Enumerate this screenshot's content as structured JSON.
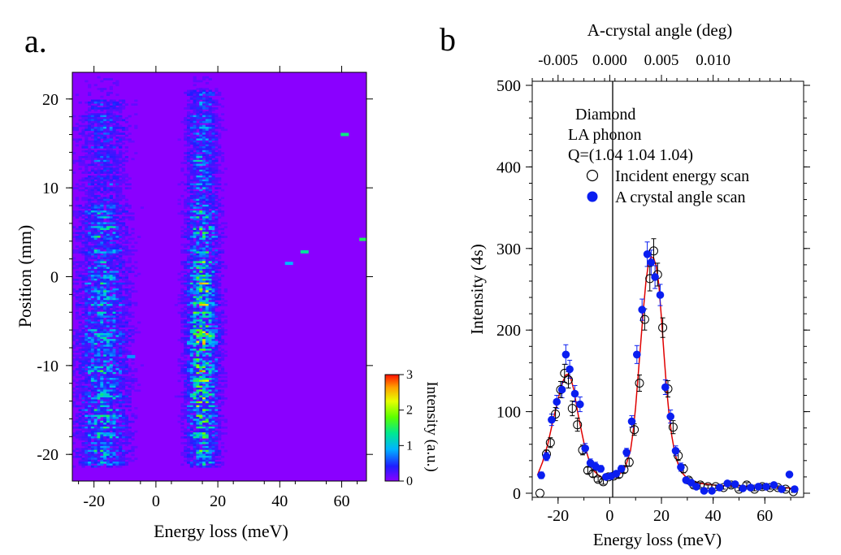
{
  "panel_a": {
    "label": "a.",
    "chart_data": {
      "type": "heatmap",
      "xlabel": "Energy loss (meV)",
      "ylabel": "Position (mm)",
      "xlim": [
        -27,
        68
      ],
      "ylim": [
        -23,
        23
      ],
      "x_ticks": [
        "-20",
        "0",
        "20",
        "40",
        "60"
      ],
      "x_tick_values": [
        -20,
        0,
        20,
        40,
        60
      ],
      "y_ticks": [
        "20",
        "10",
        "0",
        "-10",
        "-20"
      ],
      "y_tick_values": [
        20,
        10,
        0,
        -10,
        -20
      ],
      "band_centers_meV": [
        -17,
        15
      ],
      "band_peak_intensity": [
        1.0,
        2.2
      ],
      "hot_spots": [
        {
          "x": 61,
          "y": 16,
          "intensity": 1.4
        },
        {
          "x": 67,
          "y": 4.2,
          "intensity": 1.5
        },
        {
          "x": 48,
          "y": 2.8,
          "intensity": 1.3
        },
        {
          "x": 43,
          "y": 1.5,
          "intensity": 0.9
        },
        {
          "x": -8,
          "y": -9,
          "intensity": 0.8
        }
      ],
      "colorbar": {
        "label": "Intensity (a.u.)",
        "range": [
          0,
          3
        ],
        "ticks": [
          "0",
          "1",
          "2",
          "3"
        ],
        "tick_values": [
          0,
          1,
          2,
          3
        ],
        "colormap": [
          "#8a00ff",
          "#1e1eff",
          "#00b4ff",
          "#00e890",
          "#5bff00",
          "#e6ff00",
          "#ffa000",
          "#ff1000"
        ]
      }
    }
  },
  "panel_b": {
    "label": "b",
    "chart_data": {
      "type": "scatter",
      "xlabel": "Energy loss (meV)",
      "ylabel": "Intensity (4s)",
      "top_xlabel": "A-crystal angle (deg)",
      "xlim": [
        -30,
        75
      ],
      "ylim": [
        -5,
        505
      ],
      "x_ticks": [
        "-20",
        "0",
        "20",
        "40",
        "60"
      ],
      "x_tick_values": [
        -20,
        0,
        20,
        40,
        60
      ],
      "y_ticks": [
        "0",
        "100",
        "200",
        "300",
        "400",
        "500"
      ],
      "y_tick_values": [
        0,
        100,
        200,
        300,
        400,
        500
      ],
      "top_x_ticks": [
        "-0.005",
        "0.000",
        "0.005",
        "0.010"
      ],
      "top_x_tick_positions_meV": [
        -20,
        0,
        20,
        40
      ],
      "annotation": [
        "Diamond",
        "LA phonon",
        "Q=(1.04 1.04 1.04)"
      ],
      "legend": [
        {
          "name": "Incident energy scan",
          "marker": "open-circle"
        },
        {
          "name": "A crystal angle scan",
          "marker": "filled-circle",
          "color": "#0a1ef0"
        }
      ],
      "fit_color": "#e00000",
      "fit_x": [
        -28,
        -26,
        -24,
        -22,
        -20,
        -19,
        -18,
        -17,
        -16,
        -15,
        -14,
        -13,
        -12,
        -10,
        -8,
        -6,
        -4,
        -2,
        0,
        2,
        4,
        6,
        8,
        9,
        10,
        11,
        12,
        13,
        14,
        15,
        16,
        17,
        18,
        19,
        20,
        21,
        22,
        23,
        24,
        25,
        26,
        27,
        28,
        30,
        32,
        35,
        40,
        45,
        50,
        55,
        60,
        65,
        72
      ],
      "fit_y": [
        22,
        38,
        60,
        88,
        115,
        128,
        138,
        145,
        146,
        140,
        128,
        110,
        92,
        62,
        40,
        27,
        21,
        18,
        18,
        20,
        24,
        32,
        52,
        75,
        105,
        145,
        185,
        225,
        260,
        282,
        290,
        288,
        278,
        255,
        215,
        170,
        128,
        95,
        70,
        52,
        40,
        31,
        25,
        18,
        15,
        12,
        10,
        9,
        9,
        8,
        8,
        7,
        6
      ],
      "series": [
        {
          "name": "Incident energy scan",
          "x": [
            -27,
            -24.5,
            -23,
            -21,
            -19,
            -17.5,
            -16,
            -14.5,
            -12.5,
            -10.5,
            -8.5,
            -6.5,
            -4.5,
            -2.5,
            -0.5,
            1.5,
            3.5,
            5.5,
            7.5,
            9.5,
            11.5,
            13.5,
            15.5,
            17,
            18.5,
            20.5,
            22.5,
            24.5,
            26.5,
            28.5,
            30.5,
            32.5,
            35,
            38,
            41,
            44,
            47,
            50,
            53,
            56,
            59,
            62,
            65,
            68,
            71
          ],
          "y": [
            0,
            48,
            62,
            97,
            127,
            147,
            139,
            104,
            84,
            53,
            28,
            24,
            17,
            14,
            20,
            21,
            23,
            29,
            38,
            78,
            135,
            213,
            263,
            297,
            268,
            203,
            128,
            81,
            46,
            30,
            16,
            10,
            10,
            8,
            8,
            7,
            10,
            5,
            10,
            5,
            8,
            7,
            7,
            5,
            2
          ],
          "err": [
            0,
            5,
            6,
            8,
            10,
            11,
            10,
            9,
            8,
            6,
            4,
            4,
            3,
            3,
            3,
            3,
            4,
            4,
            5,
            7,
            10,
            13,
            15,
            15,
            14,
            12,
            10,
            8,
            6,
            5,
            3,
            3,
            3,
            2,
            2,
            2,
            3,
            2,
            3,
            2,
            3,
            2,
            2,
            2,
            1
          ]
        },
        {
          "name": "A crystal angle scan",
          "x": [
            -26.5,
            -24.5,
            -22.5,
            -20.5,
            -18.5,
            -17,
            -15.5,
            -13.5,
            -11.5,
            -9.5,
            -7.5,
            -5.5,
            -3.5,
            -1.5,
            0.5,
            2.5,
            4.5,
            6.5,
            8.5,
            10.5,
            12.5,
            14.5,
            16,
            17.5,
            19.5,
            21.5,
            23.5,
            25.5,
            27.5,
            29.5,
            31.5,
            33.5,
            36.5,
            39.5,
            42.5,
            45.5,
            48.5,
            51.5,
            54.5,
            57.5,
            60.5,
            63.5,
            66.5,
            69.5,
            71.5
          ],
          "y": [
            22,
            45,
            90,
            112,
            127,
            170,
            152,
            122,
            109,
            55,
            37,
            33,
            30,
            20,
            21,
            24,
            30,
            50,
            88,
            170,
            225,
            293,
            283,
            265,
            243,
            130,
            94,
            52,
            32,
            16,
            13,
            8,
            3,
            3,
            7,
            12,
            11,
            6,
            7,
            8,
            8,
            10,
            5,
            23,
            5
          ],
          "err": [
            4,
            5,
            7,
            8,
            10,
            12,
            11,
            10,
            9,
            6,
            5,
            5,
            4,
            3,
            3,
            3,
            4,
            5,
            7,
            11,
            13,
            15,
            15,
            14,
            13,
            9,
            8,
            6,
            5,
            3,
            3,
            2,
            1,
            1,
            2,
            3,
            2,
            2,
            2,
            2,
            2,
            2,
            2,
            3,
            1
          ]
        }
      ]
    }
  }
}
